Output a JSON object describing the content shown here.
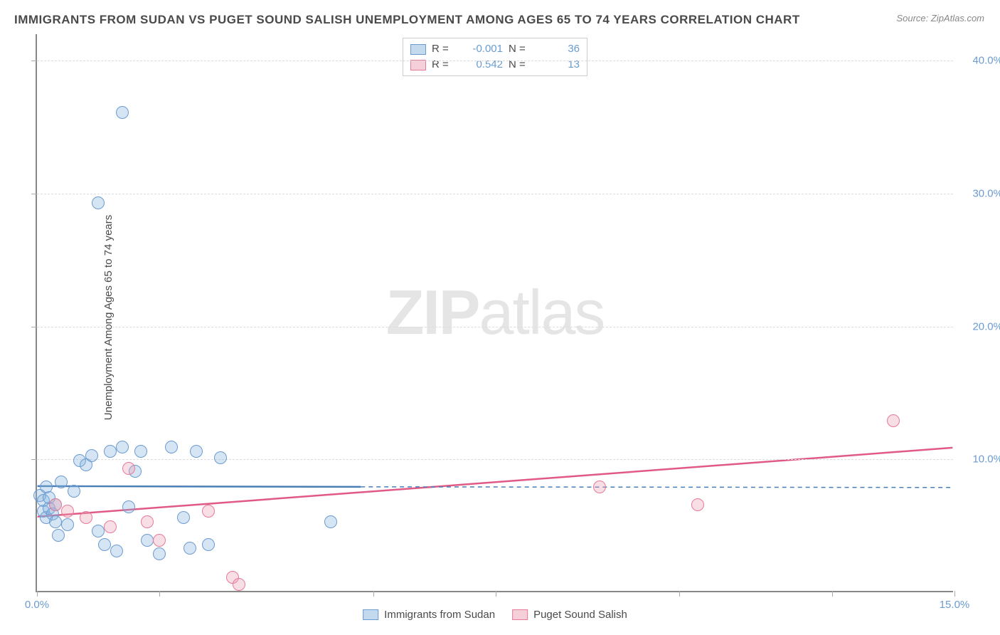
{
  "title": "IMMIGRANTS FROM SUDAN VS PUGET SOUND SALISH UNEMPLOYMENT AMONG AGES 65 TO 74 YEARS CORRELATION CHART",
  "source": "Source: ZipAtlas.com",
  "watermark_bold": "ZIP",
  "watermark_rest": "atlas",
  "ylabel": "Unemployment Among Ages 65 to 74 years",
  "chart": {
    "type": "scatter",
    "xlim": [
      0,
      15
    ],
    "ylim": [
      0,
      42
    ],
    "x_ticks": [
      0.0,
      2.0,
      5.5,
      7.5,
      10.5,
      13.0,
      15.0
    ],
    "x_tick_labels": [
      "0.0%",
      "",
      "",
      "",
      "",
      "",
      "15.0%"
    ],
    "y_ticks": [
      10.0,
      20.0,
      30.0,
      40.0
    ],
    "y_tick_labels": [
      "10.0%",
      "20.0%",
      "30.0%",
      "40.0%"
    ],
    "grid_line_color": "#dddddd",
    "axis_color": "#888888",
    "background_color": "#ffffff",
    "point_radius": 9,
    "series": [
      {
        "name": "Immigrants from Sudan",
        "color_fill": "rgba(135,180,222,0.35)",
        "color_stroke": "#6b9bd1",
        "R": "-0.001",
        "N": "36",
        "points": [
          [
            0.05,
            7.2
          ],
          [
            0.1,
            6.0
          ],
          [
            0.1,
            6.8
          ],
          [
            0.15,
            5.5
          ],
          [
            0.2,
            6.2
          ],
          [
            0.2,
            7.0
          ],
          [
            0.25,
            5.8
          ],
          [
            0.3,
            6.5
          ],
          [
            0.35,
            4.2
          ],
          [
            0.4,
            8.2
          ],
          [
            0.5,
            5.0
          ],
          [
            0.6,
            7.5
          ],
          [
            0.7,
            9.8
          ],
          [
            0.8,
            9.5
          ],
          [
            0.9,
            10.2
          ],
          [
            1.0,
            4.5
          ],
          [
            1.1,
            3.5
          ],
          [
            1.2,
            10.5
          ],
          [
            1.3,
            3.0
          ],
          [
            1.4,
            10.8
          ],
          [
            1.4,
            36.0
          ],
          [
            1.5,
            6.3
          ],
          [
            1.6,
            9.0
          ],
          [
            1.7,
            10.5
          ],
          [
            1.8,
            3.8
          ],
          [
            2.0,
            2.8
          ],
          [
            2.2,
            10.8
          ],
          [
            2.4,
            5.5
          ],
          [
            2.5,
            3.2
          ],
          [
            2.6,
            10.5
          ],
          [
            2.8,
            3.5
          ],
          [
            3.0,
            10.0
          ],
          [
            4.8,
            5.2
          ],
          [
            1.0,
            29.2
          ],
          [
            0.15,
            7.8
          ],
          [
            0.3,
            5.2
          ]
        ],
        "trend": {
          "x1": 0,
          "y1": 7.9,
          "x2": 5.3,
          "y2": 7.85,
          "dash_x2": 15.0,
          "dash_y2": 7.8,
          "stroke": "#4a7fb5",
          "width": 2.5
        }
      },
      {
        "name": "Puget Sound Salish",
        "color_fill": "rgba(235,160,180,0.35)",
        "color_stroke": "#e77a99",
        "R": "0.542",
        "N": "13",
        "points": [
          [
            0.3,
            6.5
          ],
          [
            0.5,
            6.0
          ],
          [
            0.8,
            5.5
          ],
          [
            1.2,
            4.8
          ],
          [
            1.5,
            9.2
          ],
          [
            1.8,
            5.2
          ],
          [
            2.0,
            3.8
          ],
          [
            2.8,
            6.0
          ],
          [
            3.2,
            1.0
          ],
          [
            3.3,
            0.5
          ],
          [
            9.2,
            7.8
          ],
          [
            10.8,
            6.5
          ],
          [
            14.0,
            12.8
          ]
        ],
        "trend": {
          "x1": 0,
          "y1": 5.6,
          "x2": 15.0,
          "y2": 10.8,
          "stroke": "#e05a85",
          "width": 2.5
        }
      }
    ]
  },
  "legend_top": {
    "r_label": "R =",
    "n_label": "N ="
  },
  "legend_bottom": [
    {
      "swatch": "blue",
      "label": "Immigrants from Sudan"
    },
    {
      "swatch": "pink",
      "label": "Puget Sound Salish"
    }
  ]
}
